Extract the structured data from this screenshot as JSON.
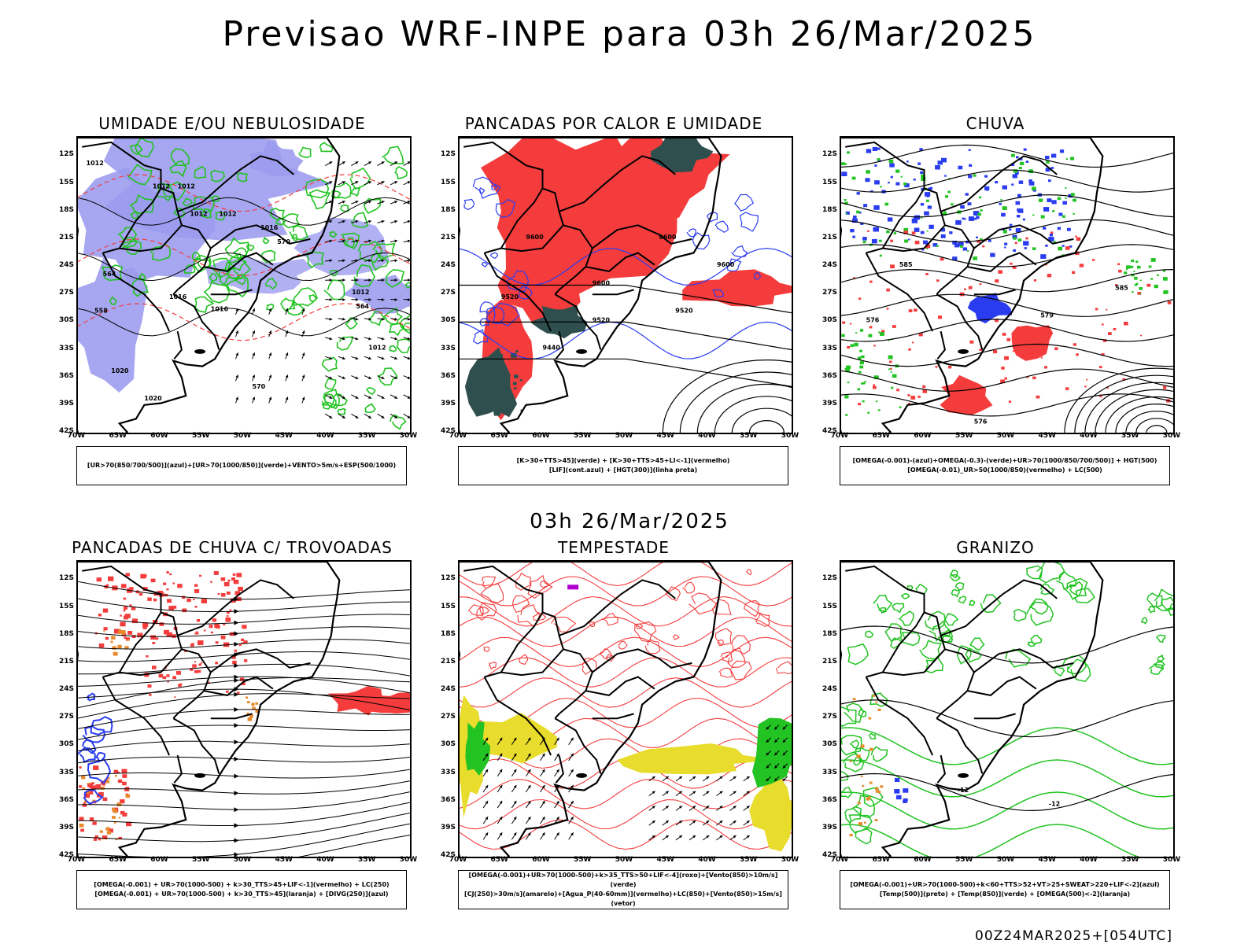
{
  "title": "Previsao WRF-INPE  para 03h 26/Mar/2025",
  "subtitle": "03h 26/Mar/2025",
  "footer": "00Z24MAR2025+[054UTC]",
  "lat_labels": [
    "12S",
    "15S",
    "18S",
    "21S",
    "24S",
    "27S",
    "30S",
    "33S",
    "36S",
    "39S",
    "42S"
  ],
  "lon_labels": [
    "70W",
    "65W",
    "60W",
    "55W",
    "50W",
    "45W",
    "40W",
    "35W",
    "30W"
  ],
  "colors": {
    "blue_fill": "#9c9cf0",
    "green": "#22c322",
    "red": "#f43c3c",
    "dark_teal": "#2f4f4f",
    "blue": "#2a3cf0",
    "yellow": "#e8dc2c",
    "orange": "#e88a2c",
    "purple": "#b000d0",
    "black": "#000000"
  },
  "panels": [
    {
      "title": "UMIDADE E/OU NEBULOSIDADE",
      "legend": [
        "[UR>70(850/700/500)](azul)+[UR>70(1000/850)](verde)+VENTO>5m/s+ESP(500/1000)"
      ],
      "contour_labels": [
        "1012",
        "1012",
        "1012",
        "1012",
        "1012",
        "1016",
        "1016",
        "1016",
        "1020",
        "1020",
        "570",
        "570",
        "564",
        "564",
        "558",
        "1012",
        "1012"
      ]
    },
    {
      "title": "PANCADAS POR CALOR E UMIDADE",
      "legend": [
        "[K>30+TTS>45](verde)  +  [K>30+TTS>45+LI<-1](vermelho)",
        "[LIF](cont.azul)  +  [HGT(300)](linha preta)"
      ],
      "contour_labels": [
        "9600",
        "9600",
        "9600",
        "9600",
        "9520",
        "9520",
        "9520",
        "9440"
      ]
    },
    {
      "title": "CHUVA",
      "legend": [
        "[OMEGA(-0.001)-(azul)+OMEGA(-0.3)-(verde)+UR>70(1000/850/700/500)]  +  HGT(500)",
        "[OMEGA(-0.01)_UR>50(1000/850)(vermelho)  +  LC(500)"
      ],
      "contour_labels": [
        "585",
        "585",
        "579",
        "576",
        "576"
      ]
    },
    {
      "title": "PANCADAS DE CHUVA C/ TROVOADAS",
      "legend": [
        "[OMEGA(-0.001)  +  UR>70(1000-500)  +  k>30_TTS>45+LIF<-1](vermelho)  +  LC(250)",
        "[OMEGA(-0.001)  +  UR>70(1000-500)  +  k>30_TTS>45](laranja)  +  [DIVG(250)](azul)"
      ],
      "contour_labels": []
    },
    {
      "title": "TEMPESTADE",
      "legend": [
        "[OMEGA(-0.001)+UR>70(1000-500)+k>35_TTS>50+LIF<-4](roxo)+[Vento(850)>10m/s](verde)",
        "[CJ(250)>30m/s](amarelo)+[Agua_P(40-60mm)](vermelho)+LC(850)+[Vento(850)>15m/s](vetor)"
      ],
      "contour_labels": []
    },
    {
      "title": "GRANIZO",
      "legend": [
        "[OMEGA(-0.001)+UR>70(1000-500)+k<60+TTS>52+VT>25+SWEAT>220+LIF<-2](azul)",
        "[Temp(500)](preto)  +  [Temp(850)](verde)  +  [OMEGA(500)<-2](laranja)"
      ],
      "contour_labels": [
        "-12",
        "-12"
      ]
    }
  ]
}
